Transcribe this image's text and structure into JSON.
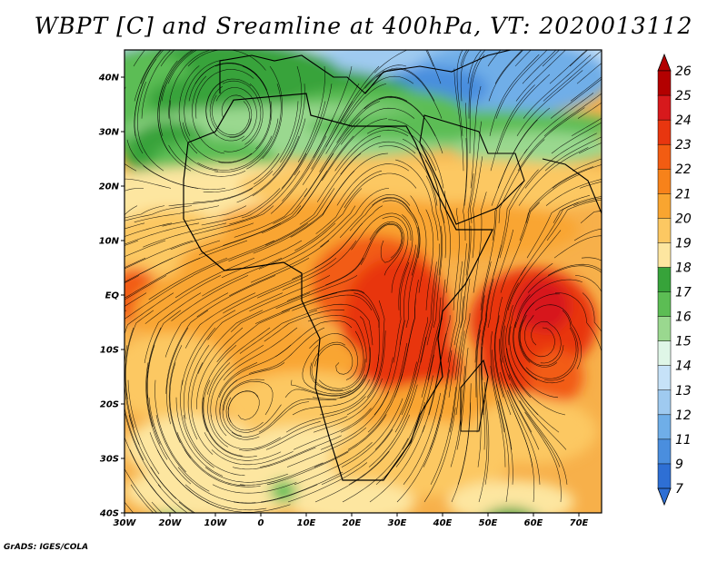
{
  "title": "WBPT [C] and Sreamline at 400hPa, VT: 2020013112",
  "credit": "GrADS: IGES/COLA",
  "axes": {
    "lat_labels": [
      "40N",
      "30N",
      "20N",
      "10N",
      "EQ",
      "10S",
      "20S",
      "30S",
      "40S"
    ],
    "lat_values": [
      40,
      30,
      20,
      10,
      0,
      -10,
      -20,
      -30,
      -40
    ],
    "lon_labels": [
      "30W",
      "20W",
      "10W",
      "0",
      "10E",
      "20E",
      "30E",
      "40E",
      "50E",
      "60E",
      "70E"
    ],
    "lon_values": [
      -30,
      -20,
      -10,
      0,
      10,
      20,
      30,
      40,
      50,
      60,
      70
    ],
    "lat_range": [
      -40,
      45
    ],
    "lon_range": [
      -30,
      75
    ]
  },
  "colorbar": {
    "levels": [
      "26",
      "25",
      "24",
      "23",
      "22",
      "21",
      "20",
      "19",
      "18",
      "17",
      "16",
      "15",
      "14",
      "13",
      "12",
      "11",
      "9",
      "7"
    ],
    "colors": [
      "#b30000",
      "#d7191c",
      "#e8360f",
      "#f25c12",
      "#f7821a",
      "#f9a530",
      "#fcc862",
      "#fde6a0",
      "#37a33a",
      "#5cbd54",
      "#9ad88f",
      "#dff6e7",
      "#c6e2f8",
      "#9fcaf0",
      "#6faee8",
      "#4a8ede",
      "#2e6fd4"
    ],
    "top_color": "#b30000",
    "bottom_color": "#2e6fd4"
  },
  "map": {
    "field": "WBPT at 400hPa",
    "overlay": "Streamlines",
    "background_color": "#f7b04a"
  }
}
